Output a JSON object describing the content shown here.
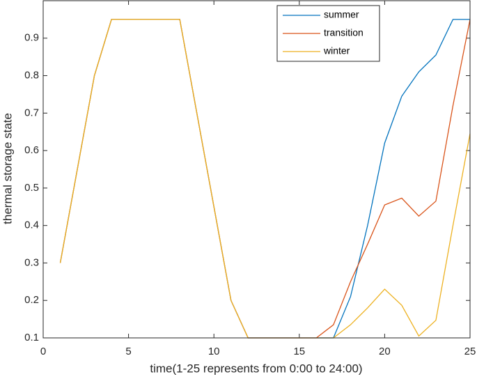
{
  "chart_data": {
    "type": "line",
    "xlabel": "time(1-25 represents from 0:00 to 24:00)",
    "ylabel": "thermal storage state",
    "x": [
      1,
      2,
      3,
      4,
      5,
      6,
      7,
      8,
      9,
      10,
      11,
      12,
      13,
      14,
      15,
      16,
      17,
      18,
      19,
      20,
      21,
      22,
      23,
      24,
      25
    ],
    "series": [
      {
        "name": "summer",
        "color": "#0072BD",
        "values": [
          0.3,
          0.55,
          0.8,
          0.95,
          0.95,
          0.95,
          0.95,
          0.95,
          0.7,
          0.45,
          0.2,
          0.1,
          0.1,
          0.1,
          0.1,
          0.1,
          0.1,
          0.21,
          0.4,
          0.62,
          0.745,
          0.81,
          0.855,
          0.95,
          0.95
        ]
      },
      {
        "name": "transition",
        "color": "#D95319",
        "values": [
          0.3,
          0.55,
          0.8,
          0.95,
          0.95,
          0.95,
          0.95,
          0.95,
          0.7,
          0.45,
          0.2,
          0.1,
          0.1,
          0.1,
          0.1,
          0.1,
          0.135,
          0.25,
          0.35,
          0.455,
          0.473,
          0.425,
          0.465,
          0.72,
          0.95
        ]
      },
      {
        "name": "winter",
        "color": "#EDB120",
        "values": [
          0.3,
          0.55,
          0.8,
          0.95,
          0.95,
          0.95,
          0.95,
          0.95,
          0.7,
          0.45,
          0.2,
          0.1,
          0.1,
          0.1,
          0.1,
          0.1,
          0.1,
          0.135,
          0.18,
          0.23,
          0.187,
          0.105,
          0.147,
          0.4,
          0.645
        ]
      }
    ],
    "xlim": [
      0,
      25
    ],
    "xticks": [
      0,
      5,
      10,
      15,
      20,
      25
    ],
    "ylim": [
      0.1,
      1
    ],
    "yticks": [
      0.1,
      0.2,
      0.3,
      0.4,
      0.5,
      0.6,
      0.7,
      0.8,
      0.9
    ],
    "legend": "top-right"
  }
}
